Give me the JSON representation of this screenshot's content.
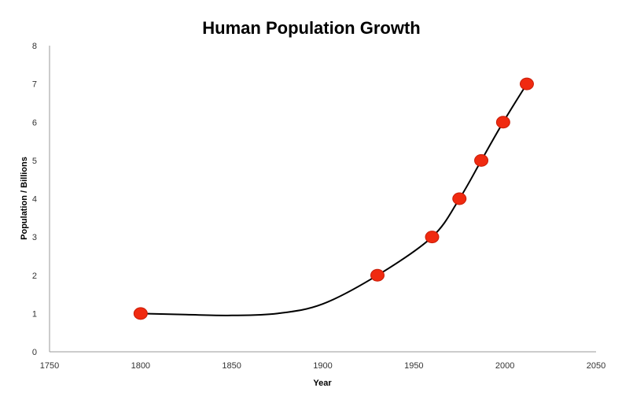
{
  "chart_data": {
    "type": "scatter",
    "title": "Human Population Growth",
    "xlabel": "Year",
    "ylabel": "Population / Billions",
    "xlim": [
      1750,
      2050
    ],
    "ylim": [
      0,
      8
    ],
    "x_ticks": [
      1750,
      1800,
      1850,
      1900,
      1950,
      2000,
      2050
    ],
    "y_ticks": [
      0,
      1,
      2,
      3,
      4,
      5,
      6,
      7,
      8
    ],
    "grid": false,
    "legend": "none",
    "series": [
      {
        "x": [
          1800,
          1930,
          1960,
          1975,
          1987,
          1999,
          2012
        ],
        "y": [
          1,
          2,
          3,
          4,
          5,
          6,
          7
        ]
      }
    ],
    "trendline": {
      "x": [
        1800,
        1825,
        1850,
        1875,
        1900,
        1930,
        1960,
        1975,
        1987,
        1999,
        2012
      ],
      "y": [
        1.0,
        0.97,
        0.95,
        1.0,
        1.25,
        2.0,
        3.0,
        4.0,
        5.0,
        6.0,
        7.0
      ]
    },
    "colors": {
      "marker": "#f02a10",
      "marker_edge": "#c81d08",
      "trendline": "#000000",
      "axis": "#999999"
    }
  }
}
